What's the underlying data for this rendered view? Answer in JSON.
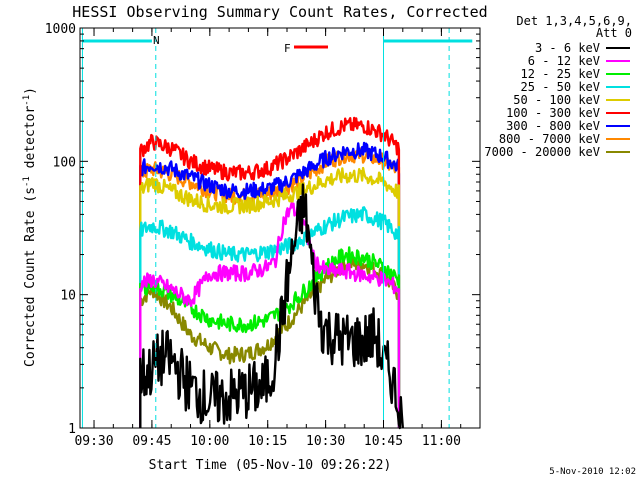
{
  "chart_data": {
    "type": "line",
    "title": "HESSI Observing Summary Count Rates, Corrected",
    "xlabel": "Start Time (05-Nov-10 09:26:22)",
    "ylabel_main": "Corrected Count Rate (s",
    "ylabel_sup1": "-1",
    "ylabel_mid": " detector",
    "ylabel_sup2": "-1",
    "ylabel_end": ")",
    "yscale": "log",
    "ylim": [
      1,
      1000
    ],
    "xlim": [
      "09:26:22",
      "11:10"
    ],
    "x_ticks": [
      "09:30",
      "09:45",
      "10:00",
      "10:15",
      "10:30",
      "10:45",
      "11:00"
    ],
    "y_ticks": [
      "1",
      "10",
      "100",
      "1000"
    ],
    "legend": {
      "header1": "Det 1,3,4,5,6,9,",
      "header2": "Att 0",
      "placement": "right-outside"
    },
    "footer_date": "5-Nov-2010 12:02",
    "annotations": {
      "night_label": "N",
      "flare_label": "F",
      "night_color": "#00e0e0",
      "flare_color": "#ff0000"
    },
    "series": [
      {
        "name": "3 - 6 keV",
        "color": "#000000",
        "x": [
          "09:42",
          "09:44",
          "09:46",
          "09:48",
          "09:50",
          "09:55",
          "10:00",
          "10:05",
          "10:10",
          "10:14",
          "10:16",
          "10:18",
          "10:20",
          "10:22",
          "10:24",
          "10:25",
          "10:27",
          "10:29",
          "10:31",
          "10:35",
          "10:40",
          "10:43",
          "10:45",
          "10:47",
          "10:49",
          "10:50"
        ],
        "y": [
          2.5,
          2.6,
          3.0,
          3.4,
          3.2,
          2.0,
          1.6,
          1.7,
          1.9,
          2.0,
          2.6,
          5,
          12,
          25,
          45,
          38,
          12,
          6,
          5,
          4.5,
          4.5,
          5,
          3.0,
          2.5,
          1.5,
          1.0
        ]
      },
      {
        "name": "6 - 12 keV",
        "color": "#ff00ff",
        "x": [
          "09:42",
          "09:45",
          "09:50",
          "09:55",
          "10:00",
          "10:05",
          "10:10",
          "10:15",
          "10:17",
          "10:19",
          "10:21",
          "10:23",
          "10:25",
          "10:27",
          "10:30",
          "10:35",
          "10:40",
          "10:45",
          "10:49"
        ],
        "y": [
          12,
          13,
          11,
          9,
          14.5,
          14.5,
          14.5,
          16,
          18,
          35,
          45,
          40,
          30,
          18,
          15,
          15,
          14,
          13,
          11
        ]
      },
      {
        "name": "12 - 25 keV",
        "color": "#00ee00",
        "x": [
          "09:42",
          "09:45",
          "09:50",
          "09:55",
          "10:00",
          "10:05",
          "10:10",
          "10:15",
          "10:20",
          "10:25",
          "10:30",
          "10:35",
          "10:40",
          "10:45",
          "10:49"
        ],
        "y": [
          11,
          12,
          10,
          8,
          6.5,
          6,
          6,
          6.5,
          8,
          11,
          16,
          20,
          19,
          16,
          13
        ]
      },
      {
        "name": "25 - 50 keV",
        "color": "#00e0e0",
        "x": [
          "09:42",
          "09:45",
          "09:50",
          "09:55",
          "10:00",
          "10:05",
          "10:10",
          "10:15",
          "10:20",
          "10:25",
          "10:30",
          "10:35",
          "10:40",
          "10:45",
          "10:49"
        ],
        "y": [
          30,
          33,
          30,
          25,
          22,
          20,
          20,
          21,
          23,
          27,
          33,
          38,
          40,
          35,
          28
        ]
      },
      {
        "name": "50 - 100 keV",
        "color": "#ddcc00",
        "x": [
          "09:42",
          "09:45",
          "09:50",
          "09:55",
          "10:00",
          "10:05",
          "10:10",
          "10:15",
          "10:20",
          "10:25",
          "10:30",
          "10:35",
          "10:40",
          "10:45",
          "10:49"
        ],
        "y": [
          60,
          70,
          60,
          52,
          47,
          46,
          47,
          50,
          55,
          62,
          72,
          78,
          78,
          70,
          58
        ]
      },
      {
        "name": "100 - 300 keV",
        "color": "#ff0000",
        "x": [
          "09:42",
          "09:45",
          "09:50",
          "09:55",
          "10:00",
          "10:05",
          "10:10",
          "10:15",
          "10:20",
          "10:25",
          "10:30",
          "10:35",
          "10:40",
          "10:45",
          "10:49"
        ],
        "y": [
          120,
          140,
          125,
          100,
          88,
          82,
          82,
          88,
          105,
          130,
          165,
          185,
          185,
          160,
          125
        ]
      },
      {
        "name": "300 - 800 keV",
        "color": "#0000ff",
        "x": [
          "09:42",
          "09:45",
          "09:50",
          "09:55",
          "10:00",
          "10:05",
          "10:10",
          "10:15",
          "10:20",
          "10:25",
          "10:30",
          "10:35",
          "10:40",
          "10:45",
          "10:49"
        ],
        "y": [
          88,
          95,
          88,
          76,
          66,
          60,
          60,
          62,
          70,
          85,
          105,
          120,
          120,
          108,
          90
        ]
      },
      {
        "name": "800 - 7000 keV",
        "color": "#ff8800",
        "x": [
          "09:42",
          "09:45",
          "09:50",
          "09:55",
          "10:00",
          "10:05",
          "10:10",
          "10:15",
          "10:20",
          "10:25",
          "10:30",
          "10:35",
          "10:40",
          "10:45",
          "10:49"
        ],
        "y": [
          80,
          88,
          80,
          70,
          60,
          55,
          55,
          57,
          64,
          78,
          98,
          112,
          112,
          100,
          84
        ]
      },
      {
        "name": "7000 - 20000 keV",
        "color": "#888800",
        "x": [
          "09:42",
          "09:45",
          "09:50",
          "09:55",
          "10:00",
          "10:05",
          "10:10",
          "10:15",
          "10:20",
          "10:25",
          "10:30",
          "10:35",
          "10:40",
          "10:45",
          "10:49"
        ],
        "y": [
          9,
          11,
          8,
          5,
          4,
          3.5,
          3.6,
          4.2,
          6,
          9,
          13,
          17,
          17,
          14,
          10
        ]
      }
    ]
  }
}
